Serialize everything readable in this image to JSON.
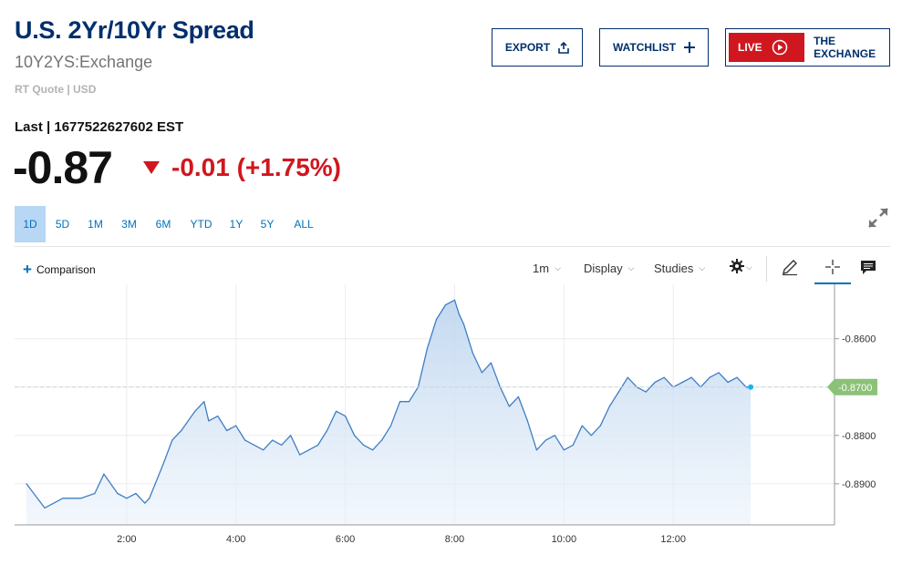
{
  "header": {
    "title": "U.S. 2Yr/10Yr Spread",
    "symbol": "10Y2YS:Exchange",
    "quote_info": "RT Quote | USD"
  },
  "actions": {
    "export_label": "EXPORT",
    "watchlist_label": "WATCHLIST",
    "live_label": "LIVE",
    "exchange_label": "THE EXCHANGE"
  },
  "quote": {
    "last_line": "Last | 1677522627602 EST",
    "price": "-0.87",
    "change": "-0.01 (+1.75%)",
    "change_color": "#d0171f"
  },
  "ranges": [
    "1D",
    "5D",
    "1M",
    "3M",
    "6M",
    "YTD",
    "1Y",
    "5Y",
    "ALL"
  ],
  "active_range": "1D",
  "toolbar": {
    "comparison_label": "Comparison",
    "interval": "1m",
    "display": "Display",
    "studies": "Studies",
    "icons": [
      "gear-icon",
      "pencil-icon",
      "crosshair-icon",
      "comment-icon"
    ]
  },
  "colors": {
    "brand": "#002f6c",
    "link": "#0071ba",
    "line": "#3f7ec4",
    "last_badge": "#8cc178",
    "active_range_bg": "#b7d7f5"
  },
  "chart_data": {
    "type": "area",
    "x_ticks": [
      "2:00",
      "4:00",
      "6:00",
      "8:00",
      "10:00",
      "12:00"
    ],
    "y_ticks": [
      "-0.8600",
      "-0.8700",
      "-0.8800",
      "-0.8900"
    ],
    "last_value_label": "-0.8700",
    "ylim": [
      -0.8985,
      -0.8495
    ],
    "grid": true,
    "series": [
      {
        "x": [
          "0:10",
          "0:30",
          "0:50",
          "1:10",
          "1:25",
          "1:35",
          "1:50",
          "2:00",
          "2:10",
          "2:20",
          "2:25",
          "2:40",
          "2:50",
          "3:00",
          "3:15",
          "3:25",
          "3:30",
          "3:40",
          "3:50",
          "4:00",
          "4:10",
          "4:20",
          "4:30",
          "4:40",
          "4:50",
          "5:00",
          "5:10",
          "5:20",
          "5:30",
          "5:40",
          "5:50",
          "6:00",
          "6:10",
          "6:20",
          "6:30",
          "6:40",
          "6:50",
          "7:00",
          "7:10",
          "7:20",
          "7:30",
          "7:40",
          "7:50",
          "8:00",
          "8:05",
          "8:10",
          "8:20",
          "8:30",
          "8:40",
          "8:50",
          "9:00",
          "9:10",
          "9:20",
          "9:30",
          "9:40",
          "9:50",
          "10:00",
          "10:10",
          "10:20",
          "10:30",
          "10:40",
          "10:50",
          "11:00",
          "11:10",
          "11:20",
          "11:30",
          "11:40",
          "11:50",
          "12:00",
          "12:10",
          "12:20",
          "12:30",
          "12:40",
          "12:50",
          "13:00",
          "13:10",
          "13:20",
          "13:25"
        ],
        "y": [
          -0.89,
          -0.895,
          -0.893,
          -0.893,
          -0.892,
          -0.888,
          -0.892,
          -0.893,
          -0.892,
          -0.894,
          -0.893,
          -0.886,
          -0.881,
          -0.879,
          -0.875,
          -0.873,
          -0.877,
          -0.876,
          -0.879,
          -0.878,
          -0.881,
          -0.882,
          -0.883,
          -0.881,
          -0.882,
          -0.88,
          -0.884,
          -0.883,
          -0.882,
          -0.879,
          -0.875,
          -0.876,
          -0.88,
          -0.882,
          -0.883,
          -0.881,
          -0.878,
          -0.873,
          -0.873,
          -0.87,
          -0.862,
          -0.856,
          -0.853,
          -0.852,
          -0.855,
          -0.857,
          -0.863,
          -0.867,
          -0.865,
          -0.87,
          -0.874,
          -0.872,
          -0.877,
          -0.883,
          -0.881,
          -0.88,
          -0.883,
          -0.882,
          -0.878,
          -0.88,
          -0.878,
          -0.874,
          -0.871,
          -0.868,
          -0.87,
          -0.871,
          -0.869,
          -0.868,
          -0.87,
          -0.869,
          -0.868,
          -0.87,
          -0.868,
          -0.867,
          -0.869,
          -0.868,
          -0.87,
          -0.87
        ]
      }
    ]
  }
}
